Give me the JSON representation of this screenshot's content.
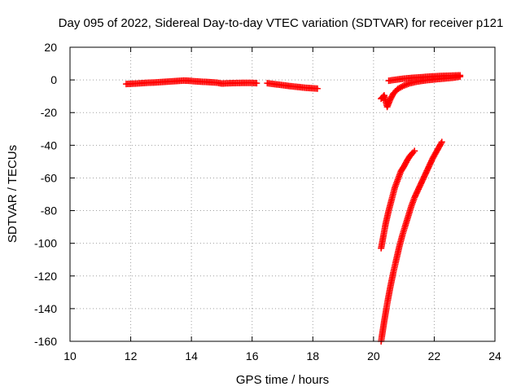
{
  "chart_data": {
    "type": "scatter",
    "title": "Day 095 of 2022, Sidereal Day-to-day VTEC variation (SDTVAR) for receiver p121",
    "xlabel": "GPS time / hours",
    "ylabel": "SDTVAR / TECUs",
    "xlim": [
      10,
      24
    ],
    "ylim": [
      -160,
      20
    ],
    "xticks": [
      10,
      12,
      14,
      16,
      18,
      20,
      22,
      24
    ],
    "yticks": [
      20,
      0,
      -20,
      -40,
      -60,
      -80,
      -100,
      -120,
      -140,
      -160
    ],
    "grid": true,
    "marker": "plus",
    "color": "#ff0000",
    "series": [
      {
        "points": [
          [
            11.85,
            -2.5
          ],
          [
            12.0,
            -2.4
          ],
          [
            12.25,
            -2.1
          ],
          [
            12.5,
            -1.8
          ],
          [
            12.75,
            -1.6
          ],
          [
            13.0,
            -1.3
          ],
          [
            13.25,
            -1.0
          ],
          [
            13.5,
            -0.7
          ],
          [
            13.75,
            -0.4
          ],
          [
            13.9,
            -0.5
          ],
          [
            14.1,
            -0.8
          ],
          [
            14.35,
            -1.1
          ],
          [
            14.6,
            -1.4
          ],
          [
            14.85,
            -1.7
          ],
          [
            15.0,
            -2.2
          ],
          [
            15.25,
            -2.0
          ],
          [
            15.5,
            -1.9
          ],
          [
            15.75,
            -1.8
          ],
          [
            16.0,
            -1.8
          ],
          [
            16.15,
            -2.0
          ]
        ]
      },
      {
        "points": [
          [
            16.5,
            -2.0
          ],
          [
            16.75,
            -2.6
          ],
          [
            17.0,
            -3.2
          ],
          [
            17.25,
            -3.8
          ],
          [
            17.5,
            -4.3
          ],
          [
            17.75,
            -4.8
          ],
          [
            18.0,
            -5.1
          ],
          [
            18.15,
            -5.3
          ]
        ]
      },
      {
        "points": [
          [
            20.25,
            -11.5
          ],
          [
            20.35,
            -9.5
          ],
          [
            20.45,
            -16.5
          ],
          [
            20.55,
            -12.0
          ],
          [
            20.65,
            -8.5
          ],
          [
            20.8,
            -5.5
          ],
          [
            21.0,
            -3.5
          ],
          [
            21.2,
            -2.0
          ],
          [
            21.45,
            -1.0
          ],
          [
            21.7,
            -0.3
          ],
          [
            22.0,
            0.3
          ],
          [
            22.3,
            0.8
          ],
          [
            22.6,
            1.3
          ],
          [
            22.85,
            2.0
          ],
          [
            20.5,
            -0.5
          ],
          [
            20.75,
            0.2
          ],
          [
            21.0,
            0.8
          ],
          [
            21.3,
            1.3
          ],
          [
            21.6,
            1.7
          ],
          [
            21.9,
            2.1
          ],
          [
            22.2,
            2.4
          ],
          [
            22.5,
            2.6
          ],
          [
            22.85,
            2.8
          ]
        ]
      },
      {
        "points": [
          [
            20.25,
            -103
          ],
          [
            20.3,
            -98
          ],
          [
            20.4,
            -88
          ],
          [
            20.5,
            -80
          ],
          [
            20.6,
            -73
          ],
          [
            20.7,
            -66
          ],
          [
            20.8,
            -61
          ],
          [
            20.9,
            -56
          ],
          [
            21.0,
            -53
          ],
          [
            21.1,
            -49.5
          ],
          [
            21.2,
            -46.5
          ],
          [
            21.3,
            -44.5
          ],
          [
            21.35,
            -43.5
          ]
        ]
      },
      {
        "points": [
          [
            20.25,
            -160
          ],
          [
            20.35,
            -148
          ],
          [
            20.45,
            -137
          ],
          [
            20.55,
            -127
          ],
          [
            20.65,
            -118
          ],
          [
            20.75,
            -110
          ],
          [
            20.85,
            -102
          ],
          [
            20.95,
            -95
          ],
          [
            21.05,
            -89
          ],
          [
            21.15,
            -83
          ],
          [
            21.25,
            -77
          ],
          [
            21.35,
            -72
          ],
          [
            21.5,
            -66
          ],
          [
            21.65,
            -60
          ],
          [
            21.8,
            -54
          ],
          [
            21.95,
            -48
          ],
          [
            22.1,
            -43
          ],
          [
            22.25,
            -38
          ]
        ]
      }
    ]
  }
}
